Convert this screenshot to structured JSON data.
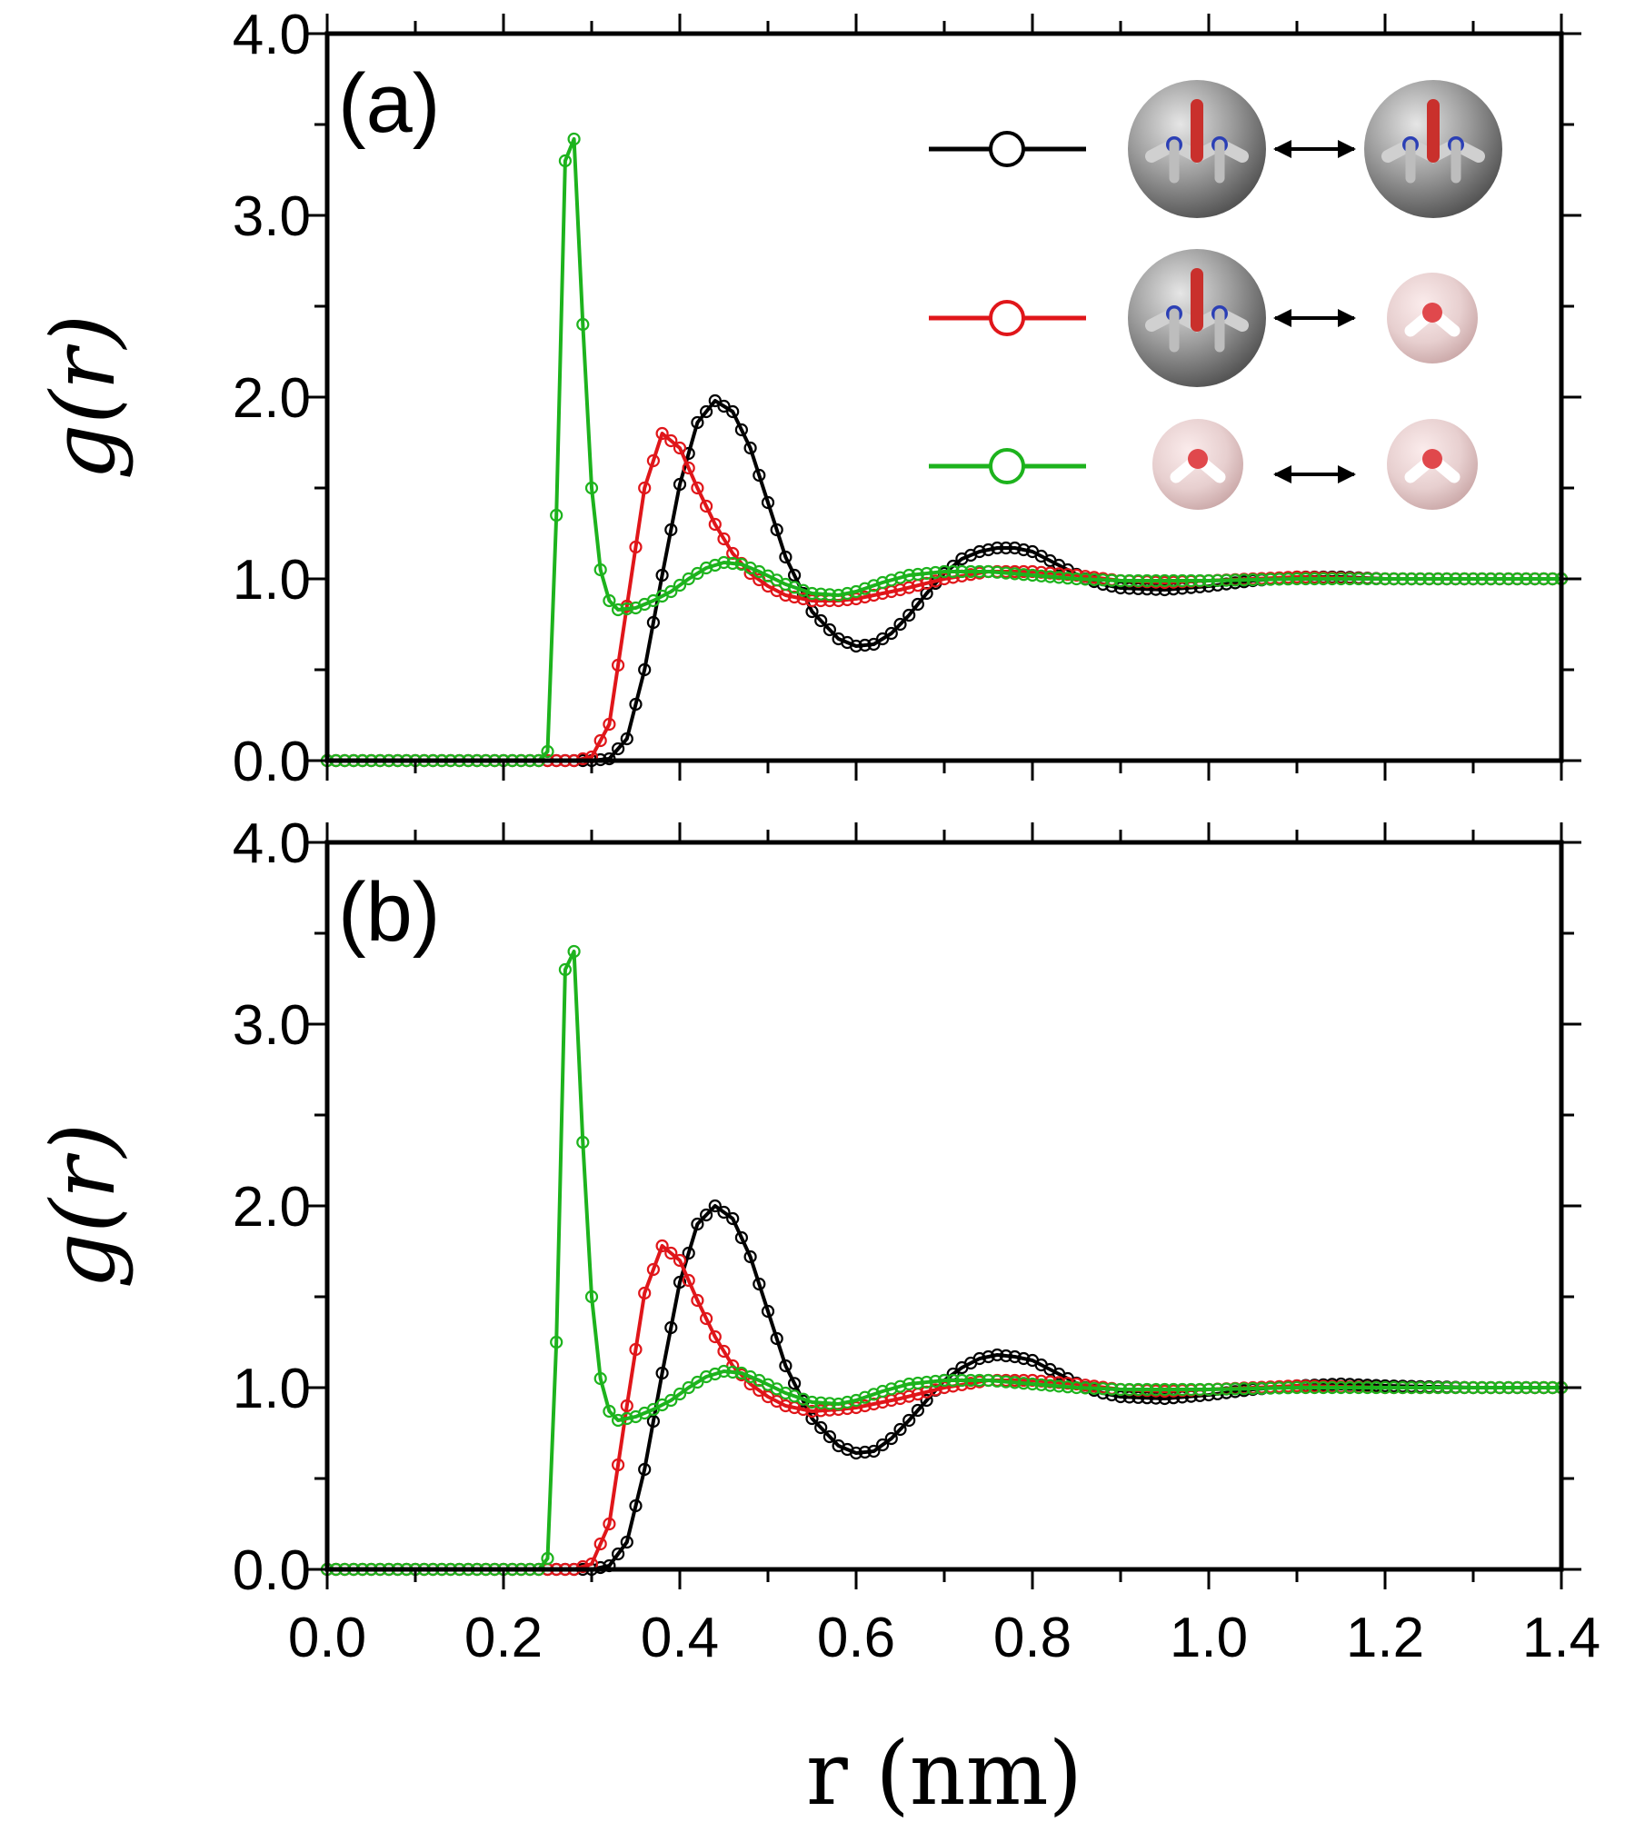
{
  "chart_data": [
    {
      "type": "line",
      "panel_label": "(a)",
      "xlim": [
        0.0,
        1.4
      ],
      "ylim": [
        0.0,
        4.0
      ],
      "ylabel": "g(r)",
      "xlabel": "",
      "y_ticks": [
        "0.0",
        "1.0",
        "2.0",
        "3.0",
        "4.0"
      ],
      "x_ticks": [],
      "grid": false,
      "legend": {
        "placement": "top-right",
        "entries": [
          {
            "pair": "urea-urea",
            "color": "#000000"
          },
          {
            "pair": "urea-water",
            "color": "#e0161a"
          },
          {
            "pair": "water-water",
            "color": "#1db31d"
          }
        ]
      },
      "series": [
        {
          "color": "#000000",
          "x": [
            0.0,
            0.1,
            0.2,
            0.3,
            0.32,
            0.34,
            0.36,
            0.38,
            0.4,
            0.42,
            0.44,
            0.46,
            0.48,
            0.5,
            0.52,
            0.55,
            0.58,
            0.6,
            0.62,
            0.64,
            0.66,
            0.68,
            0.7,
            0.72,
            0.74,
            0.76,
            0.78,
            0.8,
            0.82,
            0.84,
            0.86,
            0.88,
            0.9,
            0.95,
            1.0,
            1.05,
            1.1,
            1.15,
            1.2,
            1.3,
            1.4
          ],
          "y": [
            0.0,
            0.0,
            0.0,
            0.0,
            0.01,
            0.12,
            0.5,
            1.02,
            1.52,
            1.86,
            1.98,
            1.92,
            1.72,
            1.42,
            1.12,
            0.82,
            0.67,
            0.63,
            0.64,
            0.7,
            0.8,
            0.92,
            1.03,
            1.11,
            1.15,
            1.17,
            1.17,
            1.15,
            1.1,
            1.05,
            1.0,
            0.97,
            0.95,
            0.94,
            0.96,
            0.99,
            1.01,
            1.01,
            1.0,
            1.0,
            1.0
          ]
        },
        {
          "color": "#e0161a",
          "x": [
            0.0,
            0.1,
            0.2,
            0.25,
            0.28,
            0.3,
            0.32,
            0.34,
            0.36,
            0.38,
            0.4,
            0.42,
            0.44,
            0.46,
            0.48,
            0.5,
            0.52,
            0.55,
            0.58,
            0.6,
            0.65,
            0.7,
            0.75,
            0.8,
            0.85,
            0.9,
            0.95,
            1.0,
            1.05,
            1.1,
            1.2,
            1.3,
            1.4
          ],
          "y": [
            0.0,
            0.0,
            0.0,
            0.0,
            0.0,
            0.02,
            0.2,
            0.85,
            1.5,
            1.8,
            1.72,
            1.5,
            1.3,
            1.14,
            1.03,
            0.96,
            0.91,
            0.88,
            0.88,
            0.89,
            0.94,
            1.0,
            1.04,
            1.04,
            1.02,
            0.99,
            0.98,
            0.99,
            1.0,
            1.01,
            1.0,
            1.0,
            1.0
          ]
        },
        {
          "color": "#1db31d",
          "x": [
            0.0,
            0.1,
            0.2,
            0.24,
            0.25,
            0.26,
            0.27,
            0.28,
            0.29,
            0.3,
            0.31,
            0.32,
            0.33,
            0.35,
            0.37,
            0.39,
            0.41,
            0.43,
            0.45,
            0.47,
            0.49,
            0.52,
            0.55,
            0.58,
            0.6,
            0.63,
            0.66,
            0.7,
            0.75,
            0.8,
            0.85,
            0.9,
            1.0,
            1.1,
            1.2,
            1.3,
            1.4
          ],
          "y": [
            0.0,
            0.0,
            0.0,
            0.0,
            0.05,
            1.35,
            3.3,
            3.42,
            2.4,
            1.5,
            1.05,
            0.88,
            0.83,
            0.84,
            0.88,
            0.93,
            1.0,
            1.06,
            1.09,
            1.08,
            1.04,
            0.97,
            0.92,
            0.91,
            0.93,
            0.98,
            1.02,
            1.04,
            1.04,
            1.02,
            1.0,
            0.99,
            0.99,
            1.0,
            1.0,
            1.0,
            1.0
          ]
        }
      ]
    },
    {
      "type": "line",
      "panel_label": "(b)",
      "xlim": [
        0.0,
        1.4
      ],
      "ylim": [
        0.0,
        4.0
      ],
      "ylabel": "g(r)",
      "xlabel": "r (nm)",
      "y_ticks": [
        "0.0",
        "1.0",
        "2.0",
        "3.0",
        "4.0"
      ],
      "x_ticks": [
        "0.0",
        "0.2",
        "0.4",
        "0.6",
        "0.8",
        "1.0",
        "1.2",
        "1.4"
      ],
      "grid": false,
      "series": [
        {
          "color": "#000000",
          "x": [
            0.0,
            0.1,
            0.2,
            0.3,
            0.32,
            0.34,
            0.36,
            0.38,
            0.4,
            0.42,
            0.44,
            0.46,
            0.48,
            0.5,
            0.52,
            0.55,
            0.58,
            0.6,
            0.62,
            0.64,
            0.66,
            0.68,
            0.7,
            0.72,
            0.74,
            0.76,
            0.78,
            0.8,
            0.82,
            0.84,
            0.86,
            0.88,
            0.9,
            0.95,
            1.0,
            1.05,
            1.1,
            1.15,
            1.2,
            1.3,
            1.4
          ],
          "y": [
            0.0,
            0.0,
            0.0,
            0.0,
            0.02,
            0.15,
            0.55,
            1.08,
            1.58,
            1.9,
            2.0,
            1.93,
            1.72,
            1.42,
            1.12,
            0.83,
            0.68,
            0.64,
            0.65,
            0.72,
            0.82,
            0.93,
            1.04,
            1.11,
            1.16,
            1.18,
            1.17,
            1.15,
            1.1,
            1.05,
            1.0,
            0.97,
            0.95,
            0.94,
            0.96,
            0.99,
            1.01,
            1.02,
            1.01,
            1.0,
            1.0
          ]
        },
        {
          "color": "#e0161a",
          "x": [
            0.0,
            0.1,
            0.2,
            0.25,
            0.28,
            0.3,
            0.32,
            0.34,
            0.36,
            0.38,
            0.4,
            0.42,
            0.44,
            0.46,
            0.48,
            0.5,
            0.52,
            0.55,
            0.58,
            0.6,
            0.65,
            0.7,
            0.75,
            0.8,
            0.85,
            0.9,
            0.95,
            1.0,
            1.05,
            1.1,
            1.2,
            1.3,
            1.4
          ],
          "y": [
            0.0,
            0.0,
            0.0,
            0.0,
            0.0,
            0.03,
            0.25,
            0.9,
            1.52,
            1.78,
            1.7,
            1.48,
            1.28,
            1.12,
            1.02,
            0.95,
            0.9,
            0.87,
            0.88,
            0.89,
            0.94,
            1.0,
            1.04,
            1.04,
            1.02,
            0.99,
            0.98,
            0.99,
            1.0,
            1.01,
            1.0,
            1.0,
            1.0
          ]
        },
        {
          "color": "#1db31d",
          "x": [
            0.0,
            0.1,
            0.2,
            0.24,
            0.25,
            0.26,
            0.27,
            0.28,
            0.29,
            0.3,
            0.31,
            0.32,
            0.33,
            0.35,
            0.37,
            0.39,
            0.41,
            0.43,
            0.45,
            0.47,
            0.49,
            0.52,
            0.55,
            0.58,
            0.6,
            0.63,
            0.66,
            0.7,
            0.75,
            0.8,
            0.85,
            0.9,
            1.0,
            1.1,
            1.2,
            1.3,
            1.4
          ],
          "y": [
            0.0,
            0.0,
            0.0,
            0.0,
            0.06,
            1.25,
            3.3,
            3.4,
            2.35,
            1.5,
            1.05,
            0.87,
            0.82,
            0.84,
            0.88,
            0.93,
            1.0,
            1.06,
            1.09,
            1.08,
            1.04,
            0.97,
            0.92,
            0.91,
            0.93,
            0.98,
            1.02,
            1.04,
            1.04,
            1.02,
            1.0,
            0.99,
            0.99,
            1.0,
            1.0,
            1.0,
            1.0
          ]
        }
      ]
    }
  ]
}
